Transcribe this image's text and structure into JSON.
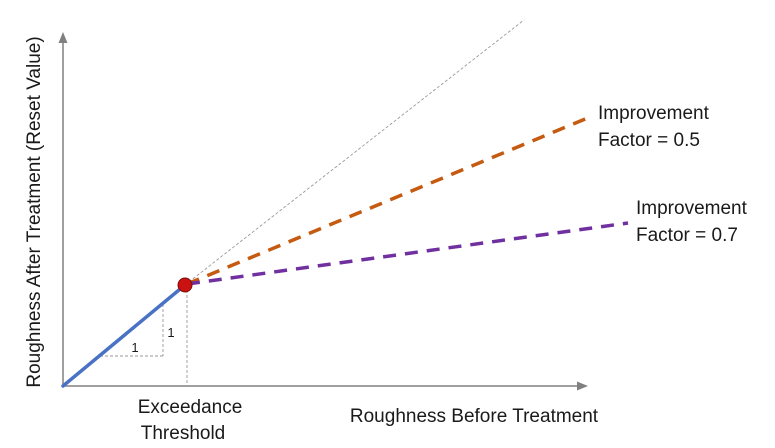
{
  "diagram": {
    "y_axis_label": "Roughness After Treatment (Reset Value)",
    "x_axis_label": "Roughness Before Treatment",
    "threshold_label_line1": "Exceedance",
    "threshold_label_line2": "Threshold",
    "slope_run_label": "1",
    "slope_rise_label": "1",
    "improvement_05": {
      "line1": "Improvement",
      "line2": "Factor = 0.5"
    },
    "improvement_07": {
      "line1": "Improvement",
      "line2": "Factor = 0.7"
    },
    "colors": {
      "axis": "#808080",
      "reference_line": "#9a9a9a",
      "identity_segment": "#4a72c4",
      "factor_05": "#c55a11",
      "factor_07": "#7030a0",
      "threshold_point": "#cc1111",
      "helper_dashes": "#999999"
    }
  }
}
